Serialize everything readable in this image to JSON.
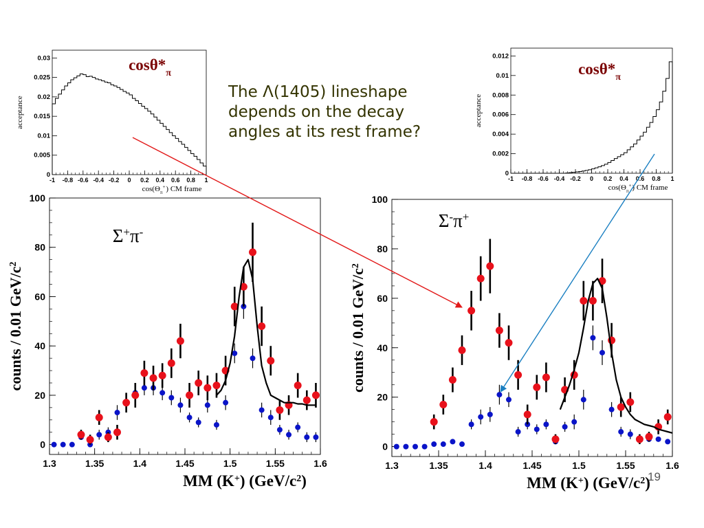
{
  "note": {
    "line1": "The Λ(1405) lineshape",
    "line2": "depends on the decay",
    "line3": "angles at its rest frame?"
  },
  "page_number": "19",
  "colors": {
    "red": "#e8111b",
    "blue": "#0a14c8",
    "label": "#7a0000",
    "text": "#333300",
    "arrow_red": "#e21a1a",
    "arrow_blue": "#1a7fc1"
  },
  "chart_data": [
    {
      "id": "acc-left",
      "type": "line",
      "title": "cosθ*π",
      "ylabel": "acceptance",
      "xlabel": "cos(Θπ+) CM frame",
      "xlim": [
        -1,
        1
      ],
      "ylim": [
        0,
        0.032
      ],
      "xticks": [
        "-1",
        "-0.8",
        "-0.6",
        "-0.4",
        "-0.2",
        "0",
        "0.2",
        "0.4",
        "0.6",
        "0.8",
        "1"
      ],
      "yticks": [
        "0",
        "0.005",
        "0.01",
        "0.015",
        "0.02",
        "0.025",
        "0.03"
      ],
      "x": [
        -1,
        -0.96,
        -0.92,
        -0.88,
        -0.84,
        -0.8,
        -0.76,
        -0.72,
        -0.68,
        -0.64,
        -0.6,
        -0.56,
        -0.52,
        -0.48,
        -0.44,
        -0.4,
        -0.36,
        -0.32,
        -0.28,
        -0.24,
        -0.2,
        -0.16,
        -0.12,
        -0.08,
        -0.04,
        0,
        0.04,
        0.08,
        0.12,
        0.16,
        0.2,
        0.24,
        0.28,
        0.32,
        0.36,
        0.4,
        0.44,
        0.48,
        0.52,
        0.56,
        0.6,
        0.64,
        0.68,
        0.72,
        0.76,
        0.8,
        0.84,
        0.88,
        0.92,
        0.96
      ],
      "values": [
        0.0182,
        0.0196,
        0.0207,
        0.0218,
        0.0228,
        0.0236,
        0.0244,
        0.0249,
        0.0254,
        0.0259,
        0.0257,
        0.0252,
        0.0253,
        0.025,
        0.0246,
        0.0244,
        0.0241,
        0.0238,
        0.0236,
        0.0231,
        0.0228,
        0.0224,
        0.0219,
        0.0214,
        0.021,
        0.0205,
        0.0196,
        0.019,
        0.0183,
        0.0176,
        0.017,
        0.0163,
        0.0156,
        0.0148,
        0.014,
        0.0132,
        0.0124,
        0.0116,
        0.0108,
        0.01,
        0.0093,
        0.0085,
        0.0078,
        0.007,
        0.0062,
        0.0054,
        0.0047,
        0.0039,
        0.003,
        0.0022
      ]
    },
    {
      "id": "acc-right",
      "type": "line",
      "title": "cosθ*π",
      "ylabel": "acceptance",
      "xlabel": "cos(Θπ+) CM frame",
      "xlim": [
        -1,
        1
      ],
      "ylim": [
        0,
        0.0128
      ],
      "xticks": [
        "-1",
        "-0.8",
        "-0.6",
        "-0.4",
        "-0.2",
        "0",
        "0.2",
        "0.4",
        "0.6",
        "0.8",
        "1"
      ],
      "yticks": [
        "0",
        "0.002",
        "0.004",
        "0.006",
        "0.008",
        "0.01",
        "0.012"
      ],
      "x": [
        -1,
        -0.96,
        -0.92,
        -0.88,
        -0.84,
        -0.8,
        -0.76,
        -0.72,
        -0.68,
        -0.64,
        -0.6,
        -0.56,
        -0.52,
        -0.48,
        -0.44,
        -0.4,
        -0.36,
        -0.32,
        -0.28,
        -0.24,
        -0.2,
        -0.16,
        -0.12,
        -0.08,
        -0.04,
        0,
        0.04,
        0.08,
        0.12,
        0.16,
        0.2,
        0.24,
        0.28,
        0.32,
        0.36,
        0.4,
        0.44,
        0.48,
        0.52,
        0.56,
        0.6,
        0.64,
        0.68,
        0.72,
        0.76,
        0.8,
        0.84,
        0.88,
        0.92,
        0.96
      ],
      "values": [
        0,
        0,
        0,
        0,
        0,
        0,
        0,
        0,
        0,
        0,
        0,
        0,
        0,
        0,
        0,
        0,
        0,
        3e-05,
        6e-05,
        0.0001,
        0.00014,
        0.00018,
        0.00023,
        0.00029,
        0.00036,
        0.00045,
        0.00055,
        0.00066,
        0.00078,
        0.00092,
        0.0011,
        0.0013,
        0.0015,
        0.0017,
        0.0019,
        0.0021,
        0.0024,
        0.0027,
        0.003,
        0.0034,
        0.0038,
        0.0042,
        0.0047,
        0.0052,
        0.0058,
        0.0065,
        0.0073,
        0.0084,
        0.0097,
        0.0114
      ]
    },
    {
      "id": "mm-left",
      "type": "scatter",
      "title": "Σ+π-",
      "xlabel": "MM (K+)    (GeV/c2)",
      "ylabel": "counts / 0.01 GeV/c2",
      "xlim": [
        1.3,
        1.6
      ],
      "ylim": [
        -4,
        100
      ],
      "xticks": [
        "1.3",
        "1.35",
        "1.4",
        "1.45",
        "1.5",
        "1.55",
        "1.6"
      ],
      "yticks": [
        "0",
        "20",
        "40",
        "60",
        "80",
        "100"
      ],
      "series": [
        {
          "color": "red",
          "x": [
            1.335,
            1.345,
            1.355,
            1.365,
            1.375,
            1.385,
            1.395,
            1.405,
            1.415,
            1.425,
            1.435,
            1.445,
            1.455,
            1.465,
            1.475,
            1.485,
            1.495,
            1.505,
            1.515,
            1.525,
            1.535,
            1.545,
            1.555,
            1.565,
            1.575,
            1.585,
            1.595
          ],
          "y": [
            4,
            2,
            11,
            3,
            5,
            17,
            20,
            29,
            27,
            28,
            33,
            42,
            20,
            25,
            23,
            24,
            30,
            56,
            64,
            78,
            48,
            34,
            14,
            16,
            24,
            18,
            20
          ],
          "err": [
            2,
            2,
            3,
            2,
            3,
            4,
            5,
            5,
            5,
            5,
            6,
            7,
            5,
            5,
            5,
            5,
            6,
            8,
            8,
            12,
            8,
            6,
            4,
            4,
            5,
            4,
            5
          ]
        },
        {
          "color": "blue",
          "x": [
            1.305,
            1.315,
            1.325,
            1.335,
            1.345,
            1.355,
            1.365,
            1.375,
            1.385,
            1.395,
            1.405,
            1.415,
            1.425,
            1.435,
            1.445,
            1.455,
            1.465,
            1.475,
            1.485,
            1.495,
            1.505,
            1.515,
            1.525,
            1.535,
            1.545,
            1.555,
            1.565,
            1.575,
            1.585,
            1.595
          ],
          "y": [
            0,
            0,
            0,
            3,
            0,
            4,
            5,
            13,
            17,
            21,
            23,
            23,
            21,
            19,
            16,
            11,
            9,
            16,
            8,
            17,
            37,
            56,
            35,
            14,
            11,
            6,
            4,
            7,
            3,
            3
          ],
          "err": [
            0,
            0,
            0,
            1,
            0,
            2,
            2,
            3,
            3,
            3,
            3,
            3,
            3,
            3,
            3,
            2,
            2,
            3,
            2,
            3,
            4,
            5,
            4,
            3,
            3,
            2,
            2,
            2,
            2,
            2
          ]
        }
      ],
      "fit": {
        "x": [
          1.485,
          1.49,
          1.495,
          1.5,
          1.505,
          1.51,
          1.515,
          1.52,
          1.525,
          1.53,
          1.535,
          1.54,
          1.545,
          1.55,
          1.555,
          1.56,
          1.565,
          1.57,
          1.575,
          1.58,
          1.585,
          1.59,
          1.595
        ],
        "y": [
          20,
          22,
          26,
          33,
          44,
          60,
          72,
          75,
          67,
          48,
          32,
          25,
          20,
          19,
          18,
          17,
          17,
          17,
          16.5,
          16.5,
          16,
          16,
          16
        ]
      }
    },
    {
      "id": "mm-right",
      "type": "scatter",
      "title": "Σ-π+",
      "xlabel": "MM (K+)     (GeV/c2)",
      "ylabel": "counts / 0.01 GeV/c2",
      "xlim": [
        1.3,
        1.6
      ],
      "ylim": [
        -4,
        100
      ],
      "xticks": [
        "1.3",
        "1.35",
        "1.4",
        "1.45",
        "1.5",
        "1.55",
        "1.6"
      ],
      "yticks": [
        "0",
        "20",
        "40",
        "60",
        "80",
        "100"
      ],
      "series": [
        {
          "color": "red",
          "x": [
            1.345,
            1.355,
            1.365,
            1.375,
            1.385,
            1.395,
            1.405,
            1.415,
            1.425,
            1.435,
            1.445,
            1.455,
            1.465,
            1.475,
            1.485,
            1.495,
            1.505,
            1.515,
            1.525,
            1.535,
            1.545,
            1.555,
            1.565,
            1.575,
            1.585,
            1.595
          ],
          "y": [
            10,
            17,
            27,
            39,
            55,
            68,
            73,
            47,
            42,
            29,
            13,
            24,
            28,
            3,
            23,
            29,
            59,
            59,
            67,
            43,
            16,
            18,
            3,
            4,
            8,
            12
          ],
          "err": [
            3,
            4,
            5,
            6,
            8,
            9,
            11,
            7,
            7,
            6,
            4,
            5,
            6,
            2,
            5,
            6,
            8,
            8,
            9,
            7,
            4,
            4,
            2,
            2,
            3,
            3
          ]
        },
        {
          "color": "blue",
          "x": [
            1.305,
            1.315,
            1.325,
            1.335,
            1.345,
            1.355,
            1.365,
            1.375,
            1.385,
            1.395,
            1.405,
            1.415,
            1.425,
            1.435,
            1.445,
            1.455,
            1.465,
            1.475,
            1.485,
            1.495,
            1.505,
            1.515,
            1.525,
            1.535,
            1.545,
            1.555,
            1.565,
            1.575,
            1.585,
            1.595
          ],
          "y": [
            0,
            0,
            0,
            0,
            1,
            1,
            2,
            1,
            9,
            12,
            13,
            21,
            19,
            6,
            9,
            7,
            9,
            2,
            8,
            10,
            19,
            44,
            38,
            15,
            6,
            5,
            3,
            3,
            3,
            2
          ],
          "err": [
            0,
            0,
            0,
            0,
            1,
            1,
            1,
            1,
            2,
            3,
            3,
            4,
            3,
            2,
            2,
            2,
            2,
            1,
            2,
            3,
            4,
            5,
            5,
            3,
            2,
            2,
            1,
            1,
            1,
            1
          ]
        }
      ],
      "fit": {
        "x": [
          1.48,
          1.485,
          1.49,
          1.495,
          1.5,
          1.505,
          1.51,
          1.515,
          1.52,
          1.525,
          1.53,
          1.535,
          1.54,
          1.545,
          1.55,
          1.555,
          1.56,
          1.565,
          1.57,
          1.575,
          1.58,
          1.585,
          1.59,
          1.595,
          1.6
        ],
        "y": [
          15,
          20,
          25,
          31,
          38,
          48,
          59,
          66,
          68,
          64,
          52,
          38,
          27,
          20,
          16,
          13,
          11,
          10,
          9,
          8.5,
          8,
          7,
          6.5,
          6,
          5.5
        ]
      }
    }
  ]
}
